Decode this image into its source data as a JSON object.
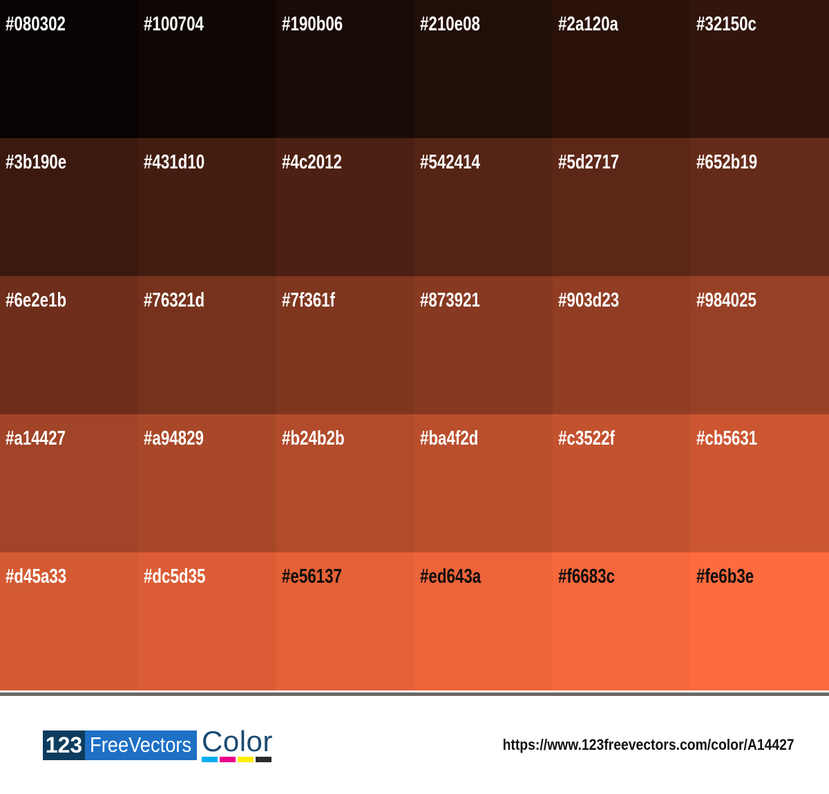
{
  "palette": {
    "columns": 6,
    "rows": 5,
    "cells": [
      {
        "hex": "#080302",
        "fg": "#ffffff"
      },
      {
        "hex": "#100704",
        "fg": "#ffffff"
      },
      {
        "hex": "#190b06",
        "fg": "#ffffff"
      },
      {
        "hex": "#210e08",
        "fg": "#ffffff"
      },
      {
        "hex": "#2a120a",
        "fg": "#ffffff"
      },
      {
        "hex": "#32150c",
        "fg": "#ffffff"
      },
      {
        "hex": "#3b190e",
        "fg": "#ffffff"
      },
      {
        "hex": "#431d10",
        "fg": "#ffffff"
      },
      {
        "hex": "#4c2012",
        "fg": "#ffffff"
      },
      {
        "hex": "#542414",
        "fg": "#ffffff"
      },
      {
        "hex": "#5d2717",
        "fg": "#ffffff"
      },
      {
        "hex": "#652b19",
        "fg": "#ffffff"
      },
      {
        "hex": "#6e2e1b",
        "fg": "#ffffff"
      },
      {
        "hex": "#76321d",
        "fg": "#ffffff"
      },
      {
        "hex": "#7f361f",
        "fg": "#ffffff"
      },
      {
        "hex": "#873921",
        "fg": "#ffffff"
      },
      {
        "hex": "#903d23",
        "fg": "#ffffff"
      },
      {
        "hex": "#984025",
        "fg": "#ffffff"
      },
      {
        "hex": "#a14427",
        "fg": "#ffffff"
      },
      {
        "hex": "#a94829",
        "fg": "#ffffff"
      },
      {
        "hex": "#b24b2b",
        "fg": "#ffffff"
      },
      {
        "hex": "#ba4f2d",
        "fg": "#ffffff"
      },
      {
        "hex": "#c3522f",
        "fg": "#ffffff"
      },
      {
        "hex": "#cb5631",
        "fg": "#ffffff"
      },
      {
        "hex": "#d45a33",
        "fg": "#ffffff"
      },
      {
        "hex": "#dc5d35",
        "fg": "#ffffff"
      },
      {
        "hex": "#e56137",
        "fg": "#0d0d0d"
      },
      {
        "hex": "#ed643a",
        "fg": "#0d0d0d"
      },
      {
        "hex": "#f6683c",
        "fg": "#0d0d0d"
      },
      {
        "hex": "#fe6b3e",
        "fg": "#0d0d0d"
      }
    ]
  },
  "divider": {
    "color": "#6b6866"
  },
  "footer": {
    "logo": {
      "number": "123",
      "brand": "FreeVectors",
      "suffix": "Color",
      "navy": "#0d3c5e",
      "blue": "#1e70c5",
      "suffix_color": "#1b4a72",
      "bars": [
        "#00aeef",
        "#ec008c",
        "#ffee00",
        "#2b2b28"
      ]
    },
    "url": "https://www.123freevectors.com/color/A14427"
  }
}
